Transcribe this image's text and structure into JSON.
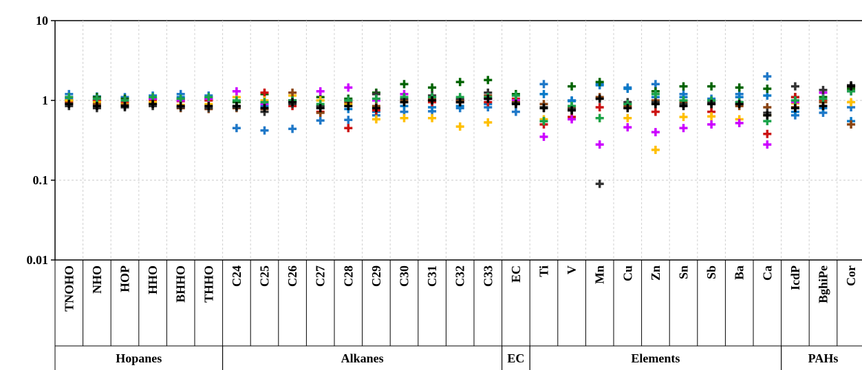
{
  "chart_data": {
    "type": "scatter",
    "title": "",
    "xlabel": "",
    "ylabel": "",
    "yscale": "log",
    "ylim": [
      0.01,
      10
    ],
    "y_ticks": [
      "10",
      "1",
      "0.1",
      "0.01"
    ],
    "grid": true,
    "marker": "plus",
    "categories": [
      "TNOHO",
      "NHO",
      "HOP",
      "HHO",
      "BHHO",
      "THHO",
      "C24",
      "C25",
      "C26",
      "C27",
      "C28",
      "C29",
      "C30",
      "C31",
      "C32",
      "C33",
      "EC",
      "Ti",
      "V",
      "Mn",
      "Cu",
      "Zn",
      "Sn",
      "Sb",
      "Ba",
      "Ca",
      "IcdP",
      "BghiPe",
      "Cor"
    ],
    "groups": [
      {
        "label": "Hopanes",
        "start": 0,
        "end": 5
      },
      {
        "label": "Alkanes",
        "start": 6,
        "end": 15
      },
      {
        "label": "EC",
        "start": 16,
        "end": 16
      },
      {
        "label": "Elements",
        "start": 17,
        "end": 25
      },
      {
        "label": "PAHs",
        "start": 26,
        "end": 28
      }
    ],
    "series": [
      {
        "color": "#1f78c8",
        "values": [
          1.2,
          1.12,
          1.1,
          1.15,
          1.2,
          1.15,
          0.45,
          0.42,
          0.44,
          0.56,
          0.57,
          0.65,
          0.72,
          0.73,
          0.8,
          0.82,
          0.72,
          1.6,
          1.0,
          1.6,
          1.45,
          1.6,
          1.2,
          1.05,
          1.2,
          2.0,
          0.65,
          0.7,
          0.82
        ]
      },
      {
        "color": "#0a7ac8",
        "values": [
          1.05,
          1.0,
          0.98,
          1.05,
          1.1,
          1.1,
          0.82,
          0.85,
          0.95,
          0.85,
          0.78,
          0.72,
          0.85,
          0.82,
          0.85,
          0.9,
          0.92,
          1.2,
          0.98,
          1.55,
          1.4,
          1.1,
          1.1,
          1.0,
          1.1,
          1.15,
          0.72,
          0.8,
          0.55
        ]
      },
      {
        "color": "#006400",
        "values": [
          1.0,
          1.1,
          1.05,
          1.05,
          1.05,
          1.05,
          0.95,
          1.2,
          1.0,
          1.1,
          1.05,
          1.25,
          1.6,
          1.45,
          1.7,
          1.8,
          1.2,
          0.55,
          1.5,
          1.7,
          0.9,
          1.3,
          1.5,
          1.5,
          1.45,
          1.4,
          1.1,
          1.1,
          1.4
        ]
      },
      {
        "color": "#cc1111",
        "values": [
          0.95,
          1.0,
          0.95,
          1.0,
          0.98,
          1.0,
          0.85,
          1.25,
          0.85,
          0.72,
          0.45,
          0.75,
          1.05,
          0.95,
          0.95,
          0.95,
          1.05,
          0.5,
          0.62,
          0.82,
          0.82,
          0.72,
          0.9,
          0.72,
          0.9,
          0.38,
          1.1,
          1.0,
          1.5
        ]
      },
      {
        "color": "#ffbf00",
        "values": [
          1.0,
          0.95,
          0.9,
          0.95,
          0.88,
          0.9,
          1.1,
          1.0,
          1.15,
          1.0,
          0.9,
          0.58,
          0.6,
          0.6,
          0.47,
          0.53,
          1.0,
          0.58,
          0.85,
          0.6,
          0.6,
          0.24,
          0.62,
          0.63,
          0.58,
          0.65,
          0.92,
          0.95,
          0.95
        ]
      },
      {
        "color": "#cc00ff",
        "values": [
          1.1,
          1.05,
          1.0,
          1.05,
          1.0,
          1.05,
          1.3,
          0.9,
          1.0,
          1.3,
          1.45,
          1.0,
          1.2,
          1.1,
          1.0,
          1.05,
          1.0,
          0.35,
          0.58,
          0.28,
          0.46,
          0.4,
          0.45,
          0.5,
          0.52,
          0.28,
          0.95,
          1.25,
          1.3
        ]
      },
      {
        "color": "#8b4513",
        "values": [
          0.92,
          0.9,
          0.88,
          0.9,
          0.8,
          0.78,
          0.8,
          0.78,
          1.25,
          0.7,
          0.95,
          0.85,
          1.0,
          1.05,
          1.0,
          1.15,
          0.95,
          0.9,
          0.8,
          1.1,
          0.85,
          1.0,
          0.95,
          0.9,
          0.85,
          0.82,
          0.82,
          0.95,
          0.5
        ]
      },
      {
        "color": "#333333",
        "values": [
          0.85,
          0.8,
          0.82,
          0.85,
          0.82,
          0.8,
          0.82,
          0.72,
          0.9,
          0.85,
          1.0,
          1.2,
          1.05,
          1.15,
          1.05,
          1.25,
          0.92,
          0.82,
          0.78,
          0.09,
          0.95,
          0.95,
          0.9,
          0.95,
          0.95,
          0.7,
          1.5,
          1.35,
          1.55
        ]
      },
      {
        "color": "#1aa34a",
        "values": [
          1.1,
          1.05,
          1.0,
          1.1,
          1.05,
          1.1,
          1.0,
          0.95,
          1.0,
          0.9,
          1.0,
          1.05,
          1.1,
          1.1,
          1.1,
          1.1,
          1.15,
          0.55,
          0.85,
          0.6,
          0.9,
          1.2,
          1.0,
          1.0,
          0.95,
          0.55,
          1.0,
          1.05,
          1.3
        ]
      },
      {
        "color": "#000000",
        "values": [
          0.9,
          0.85,
          0.85,
          0.9,
          0.85,
          0.85,
          0.85,
          0.8,
          0.95,
          0.8,
          0.85,
          0.8,
          0.95,
          1.0,
          0.95,
          1.05,
          0.9,
          0.8,
          0.75,
          1.05,
          0.8,
          0.9,
          0.85,
          0.9,
          0.9,
          0.65,
          0.8,
          0.85,
          1.5
        ]
      }
    ]
  }
}
